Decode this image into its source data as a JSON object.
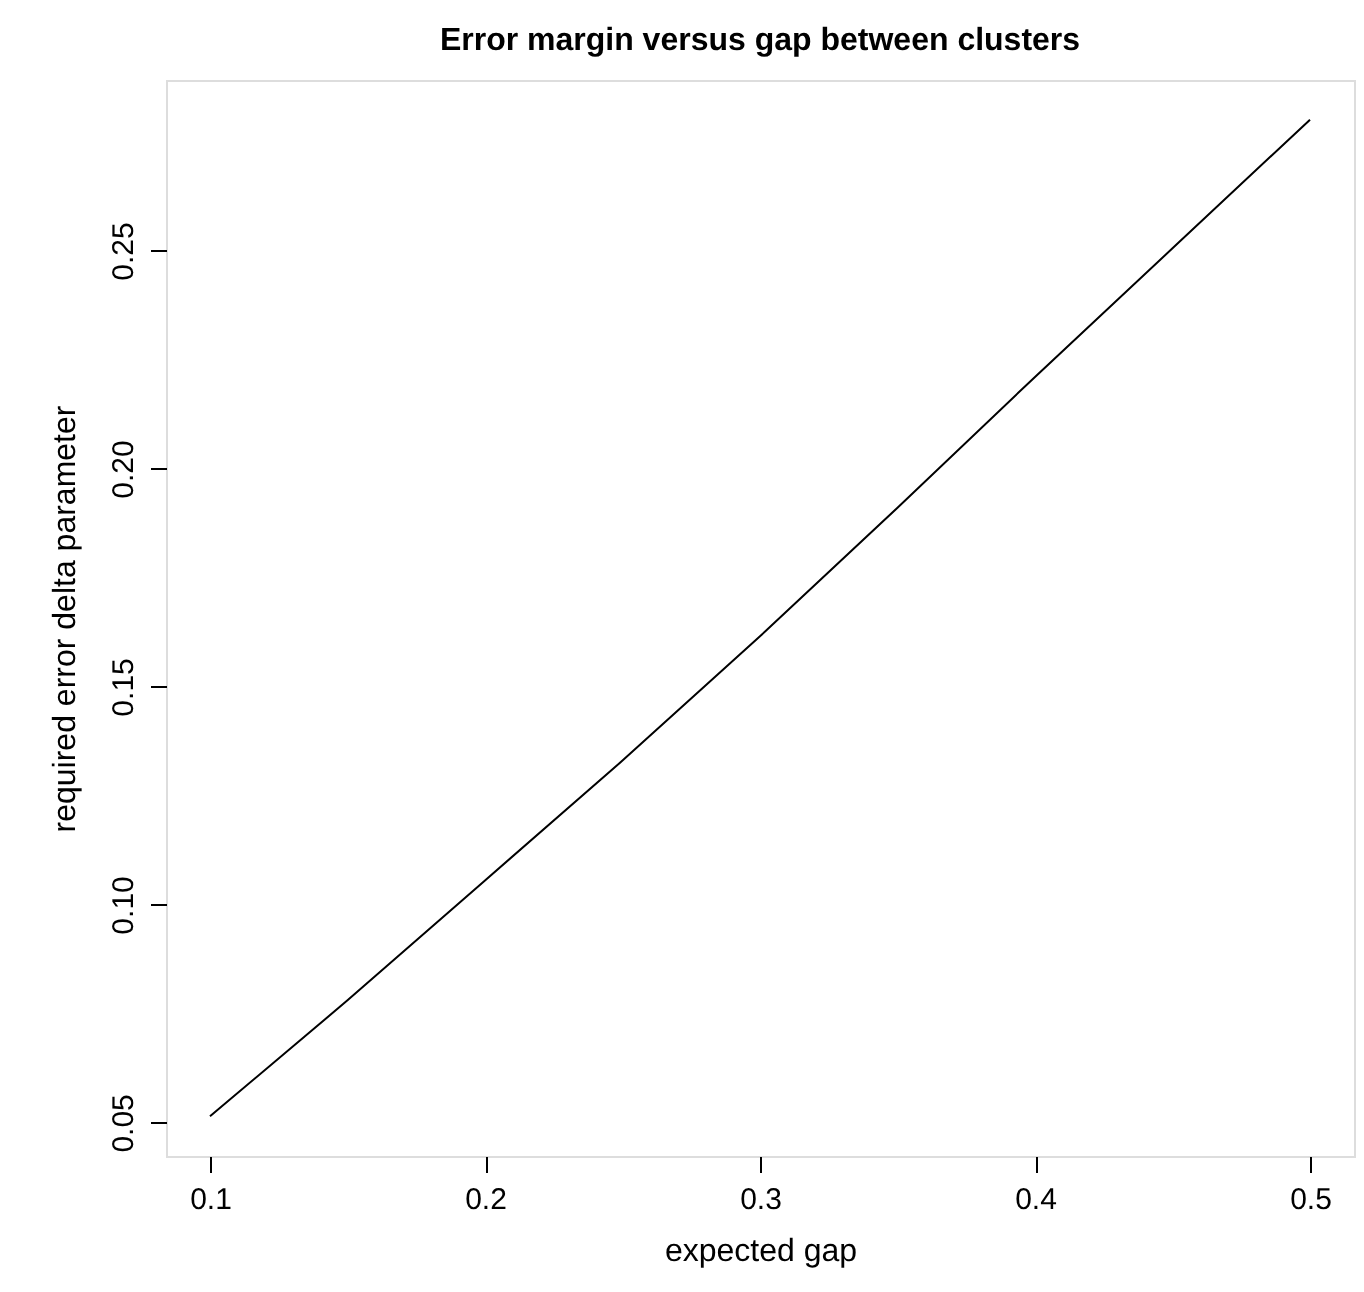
{
  "chart_data": {
    "type": "line",
    "title": "Error margin versus gap between clusters",
    "xlabel": "expected gap",
    "ylabel": "required error delta parameter",
    "x": [
      0.1,
      0.15,
      0.2,
      0.25,
      0.3,
      0.35,
      0.4,
      0.45,
      0.5
    ],
    "series": [
      {
        "color": "#000000",
        "values": [
          0.0514,
          0.078,
          0.1055,
          0.133,
          0.1615,
          0.191,
          0.221,
          0.2505,
          0.28
        ]
      }
    ],
    "xlim": [
      0.084,
      0.516
    ],
    "ylim": [
      0.0423,
      0.2891
    ],
    "xticks": [
      0.1,
      0.2,
      0.3,
      0.4,
      0.5
    ],
    "yticks": [
      {
        "value": 0.05,
        "label": "0.05"
      },
      {
        "value": 0.1,
        "label": "0.10"
      },
      {
        "value": 0.15,
        "label": "0.15"
      },
      {
        "value": 0.2,
        "label": "0.20"
      },
      {
        "value": 0.25,
        "label": "0.25"
      }
    ],
    "grid": false,
    "marker": "none",
    "line_style": "solid"
  }
}
